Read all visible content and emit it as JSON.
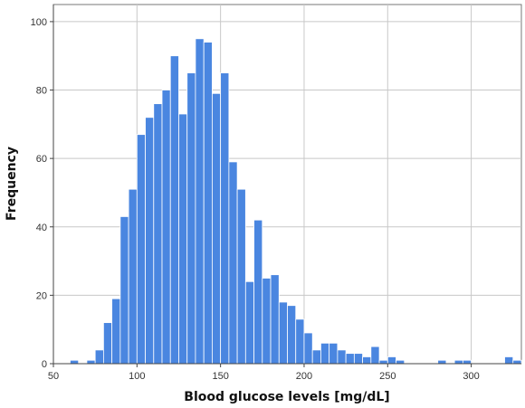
{
  "chart_data": {
    "type": "bar",
    "title": "",
    "xlabel": "Blood glucose levels [mg/dL]",
    "ylabel": "Frequency",
    "bin_width": 5,
    "bin_starts": [
      60,
      65,
      70,
      75,
      80,
      85,
      90,
      95,
      100,
      105,
      110,
      115,
      120,
      125,
      130,
      135,
      140,
      145,
      150,
      155,
      160,
      165,
      170,
      175,
      180,
      185,
      190,
      195,
      200,
      205,
      210,
      215,
      220,
      225,
      230,
      235,
      240,
      245,
      250,
      255,
      260,
      265,
      270,
      275,
      280,
      285,
      290,
      295,
      300,
      305,
      310,
      315,
      320,
      325
    ],
    "values": [
      1,
      0,
      1,
      4,
      12,
      19,
      43,
      51,
      67,
      72,
      76,
      80,
      90,
      73,
      85,
      95,
      94,
      79,
      85,
      59,
      51,
      24,
      42,
      25,
      26,
      18,
      17,
      13,
      9,
      4,
      6,
      6,
      4,
      3,
      3,
      2,
      5,
      1,
      2,
      1,
      0,
      0,
      0,
      0,
      1,
      0,
      1,
      1,
      0,
      0,
      0,
      0,
      2,
      1
    ],
    "xlim": [
      50,
      330
    ],
    "ylim": [
      0,
      105
    ],
    "x_ticks": [
      50,
      100,
      150,
      200,
      250,
      300
    ],
    "y_ticks": [
      0,
      20,
      40,
      60,
      80,
      100
    ],
    "grid": "both",
    "bar_color": "#4a86e0",
    "bar_edge_color": "#ffffff"
  }
}
